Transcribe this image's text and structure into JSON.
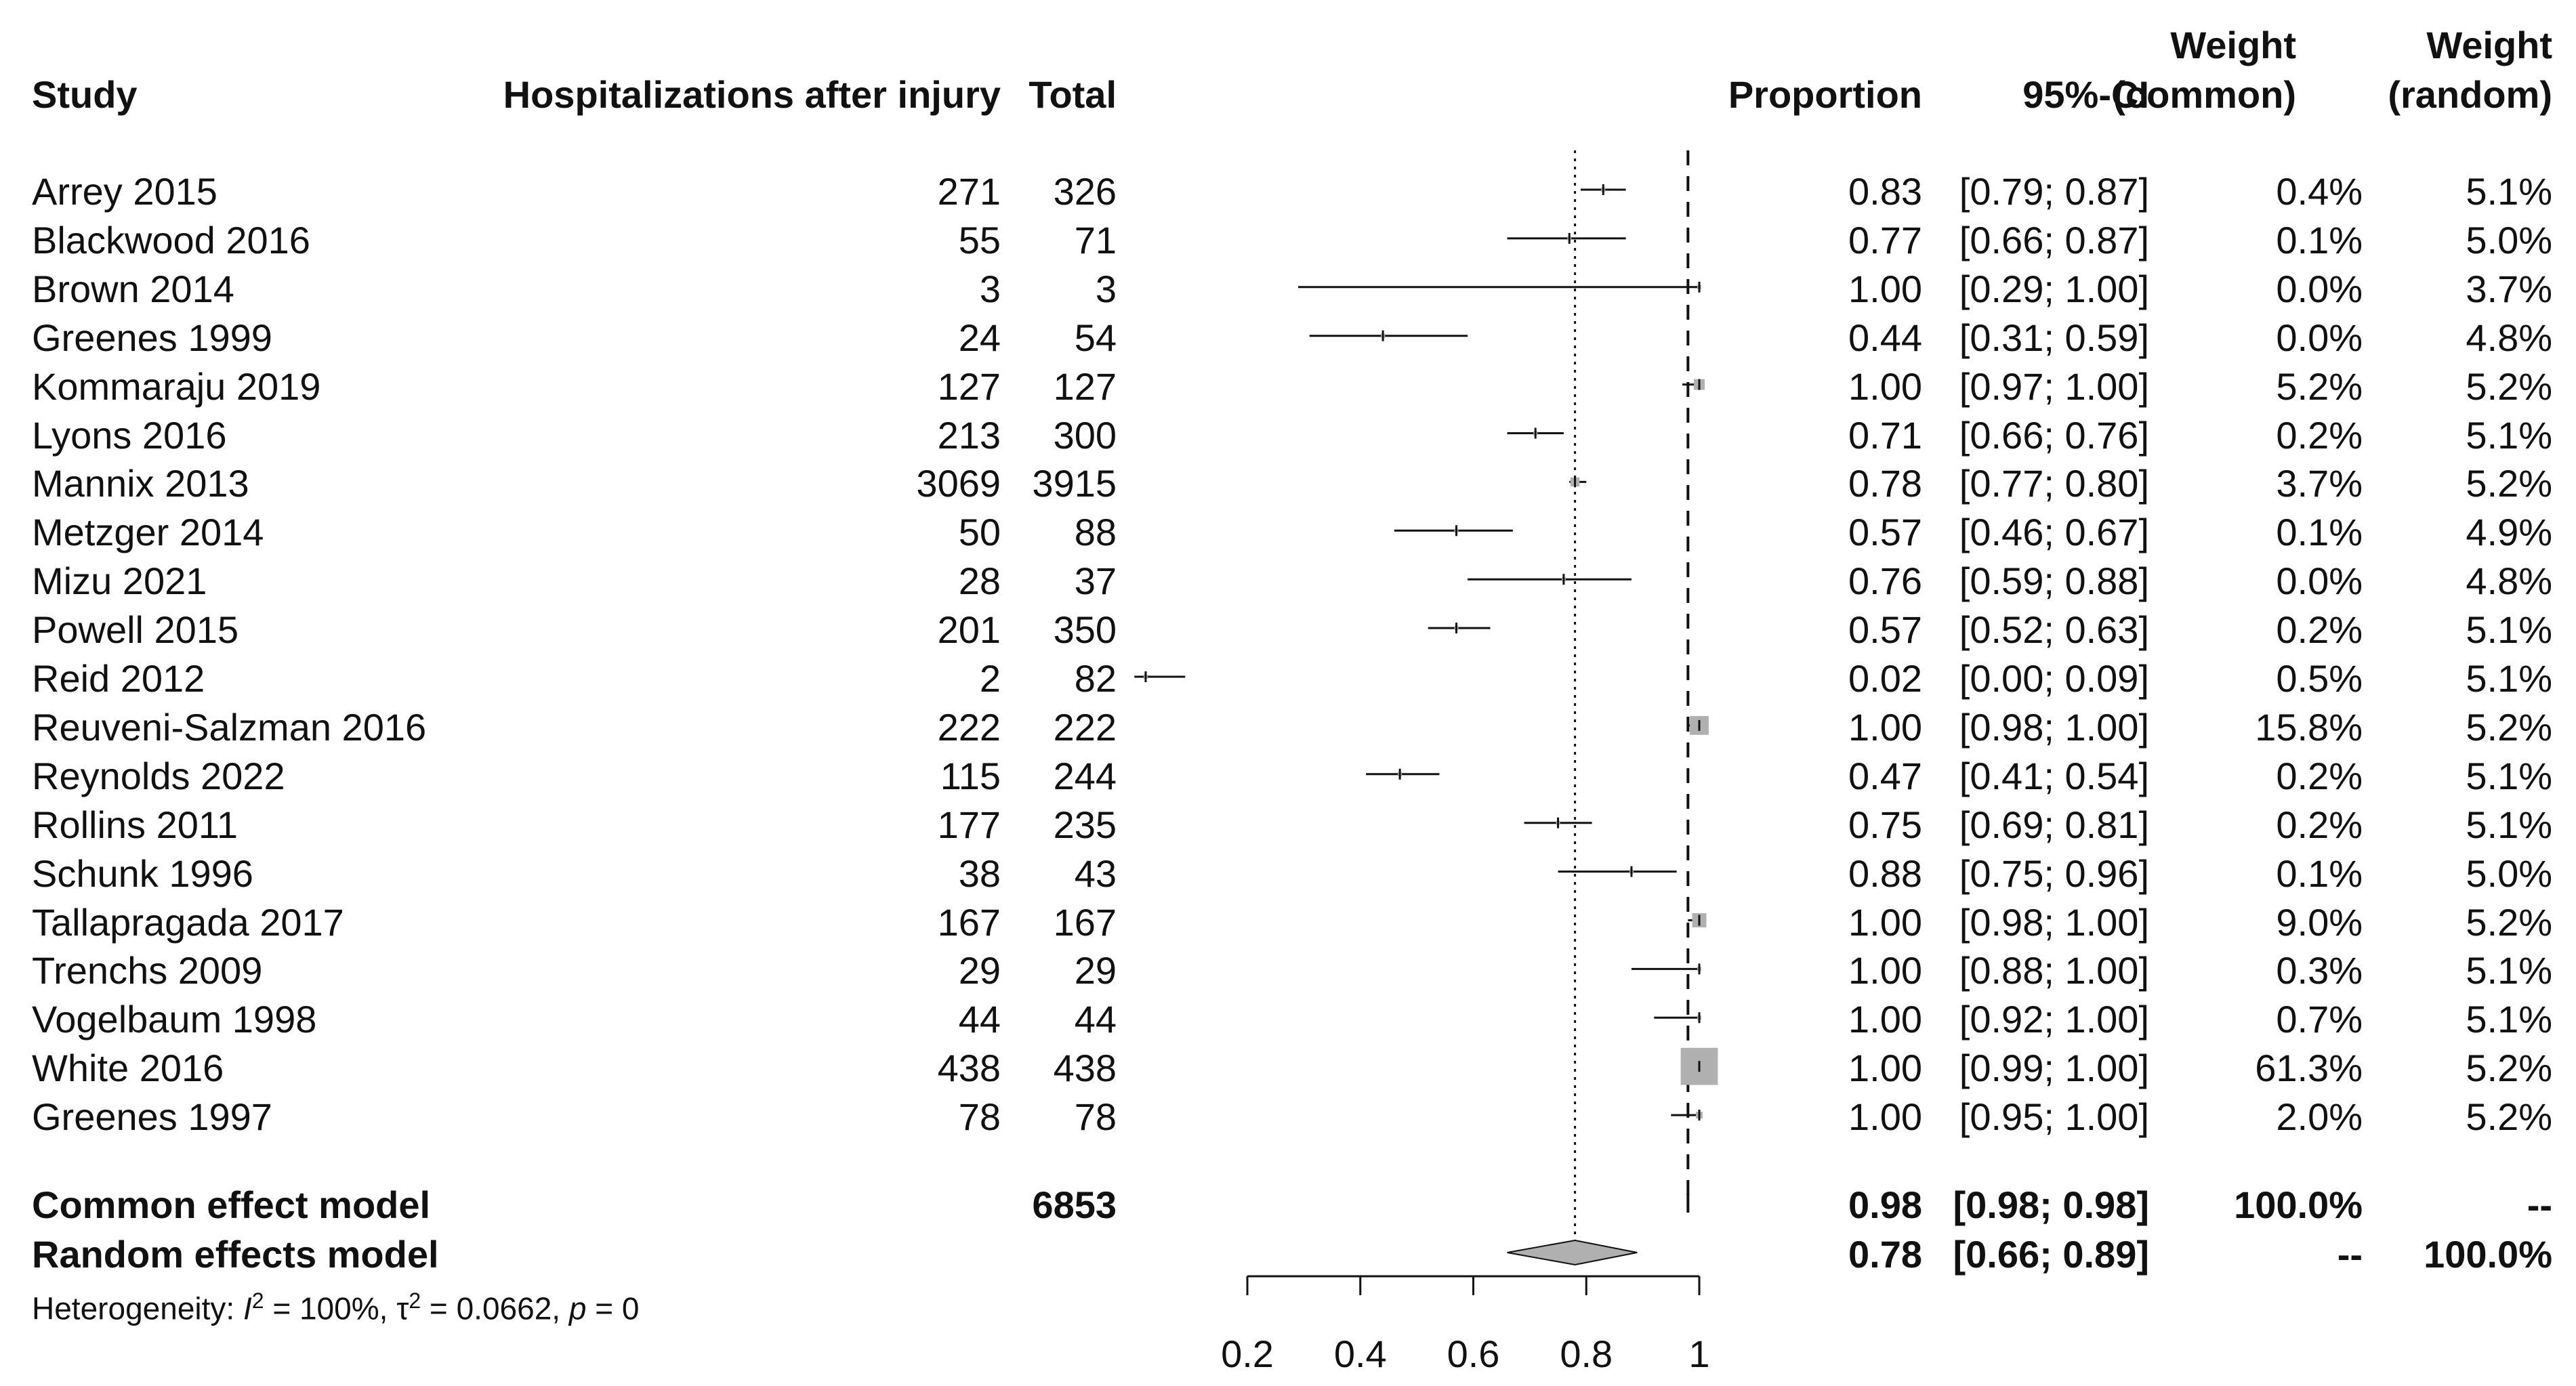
{
  "chart_data": {
    "type": "forest",
    "title": "",
    "xlabel": "",
    "xlim": [
      0.2,
      1.0
    ],
    "ticks": [
      "0.2",
      "0.4",
      "0.6",
      "0.8",
      "1"
    ],
    "tick_values": [
      0.2,
      0.4,
      0.6,
      0.8,
      1.0
    ],
    "reference_lines": {
      "common": 0.98,
      "random": 0.78
    },
    "headers": {
      "study": "Study",
      "events": "Hospitalizations after injury",
      "total": "Total",
      "proportion": "Proportion",
      "ci": "95%-CI",
      "weight_common_1": "Weight",
      "weight_common_2": "(common)",
      "weight_random_1": "Weight",
      "weight_random_2": "(random)"
    },
    "studies": [
      {
        "study": "Arrey 2015",
        "events": "271",
        "total": "326",
        "prop": 0.83,
        "lo": 0.79,
        "hi": 0.87,
        "prop_s": "0.83",
        "ci_s": "[0.79; 0.87]",
        "wc_s": "0.4%",
        "wr_s": "5.1%",
        "wc": 0.4
      },
      {
        "study": "Blackwood 2016",
        "events": "55",
        "total": "71",
        "prop": 0.77,
        "lo": 0.66,
        "hi": 0.87,
        "prop_s": "0.77",
        "ci_s": "[0.66; 0.87]",
        "wc_s": "0.1%",
        "wr_s": "5.0%",
        "wc": 0.1
      },
      {
        "study": "Brown 2014",
        "events": "3",
        "total": "3",
        "prop": 1.0,
        "lo": 0.29,
        "hi": 1.0,
        "prop_s": "1.00",
        "ci_s": "[0.29; 1.00]",
        "wc_s": "0.0%",
        "wr_s": "3.7%",
        "wc": 0.0
      },
      {
        "study": "Greenes 1999",
        "events": "24",
        "total": "54",
        "prop": 0.44,
        "lo": 0.31,
        "hi": 0.59,
        "prop_s": "0.44",
        "ci_s": "[0.31; 0.59]",
        "wc_s": "0.0%",
        "wr_s": "4.8%",
        "wc": 0.0
      },
      {
        "study": "Kommaraju 2019",
        "events": "127",
        "total": "127",
        "prop": 1.0,
        "lo": 0.97,
        "hi": 1.0,
        "prop_s": "1.00",
        "ci_s": "[0.97; 1.00]",
        "wc_s": "5.2%",
        "wr_s": "5.2%",
        "wc": 5.2
      },
      {
        "study": "Lyons 2016",
        "events": "213",
        "total": "300",
        "prop": 0.71,
        "lo": 0.66,
        "hi": 0.76,
        "prop_s": "0.71",
        "ci_s": "[0.66; 0.76]",
        "wc_s": "0.2%",
        "wr_s": "5.1%",
        "wc": 0.2
      },
      {
        "study": "Mannix 2013",
        "events": "3069",
        "total": "3915",
        "prop": 0.78,
        "lo": 0.77,
        "hi": 0.8,
        "prop_s": "0.78",
        "ci_s": "[0.77; 0.80]",
        "wc_s": "3.7%",
        "wr_s": "5.2%",
        "wc": 3.7
      },
      {
        "study": "Metzger 2014",
        "events": "50",
        "total": "88",
        "prop": 0.57,
        "lo": 0.46,
        "hi": 0.67,
        "prop_s": "0.57",
        "ci_s": "[0.46; 0.67]",
        "wc_s": "0.1%",
        "wr_s": "4.9%",
        "wc": 0.1
      },
      {
        "study": "Mizu 2021",
        "events": "28",
        "total": "37",
        "prop": 0.76,
        "lo": 0.59,
        "hi": 0.88,
        "prop_s": "0.76",
        "ci_s": "[0.59; 0.88]",
        "wc_s": "0.0%",
        "wr_s": "4.8%",
        "wc": 0.0
      },
      {
        "study": "Powell 2015",
        "events": "201",
        "total": "350",
        "prop": 0.57,
        "lo": 0.52,
        "hi": 0.63,
        "prop_s": "0.57",
        "ci_s": "[0.52; 0.63]",
        "wc_s": "0.2%",
        "wr_s": "5.1%",
        "wc": 0.2
      },
      {
        "study": "Reid 2012",
        "events": "2",
        "total": "82",
        "prop": 0.02,
        "lo": 0.0,
        "hi": 0.09,
        "prop_s": "0.02",
        "ci_s": "[0.00; 0.09]",
        "wc_s": "0.5%",
        "wr_s": "5.1%",
        "wc": 0.5
      },
      {
        "study": "Reuveni-Salzman 2016",
        "events": "222",
        "total": "222",
        "prop": 1.0,
        "lo": 0.98,
        "hi": 1.0,
        "prop_s": "1.00",
        "ci_s": "[0.98; 1.00]",
        "wc_s": "15.8%",
        "wr_s": "5.2%",
        "wc": 15.8
      },
      {
        "study": "Reynolds 2022",
        "events": "115",
        "total": "244",
        "prop": 0.47,
        "lo": 0.41,
        "hi": 0.54,
        "prop_s": "0.47",
        "ci_s": "[0.41; 0.54]",
        "wc_s": "0.2%",
        "wr_s": "5.1%",
        "wc": 0.2
      },
      {
        "study": "Rollins 2011",
        "events": "177",
        "total": "235",
        "prop": 0.75,
        "lo": 0.69,
        "hi": 0.81,
        "prop_s": "0.75",
        "ci_s": "[0.69; 0.81]",
        "wc_s": "0.2%",
        "wr_s": "5.1%",
        "wc": 0.2
      },
      {
        "study": "Schunk 1996",
        "events": "38",
        "total": "43",
        "prop": 0.88,
        "lo": 0.75,
        "hi": 0.96,
        "prop_s": "0.88",
        "ci_s": "[0.75; 0.96]",
        "wc_s": "0.1%",
        "wr_s": "5.0%",
        "wc": 0.1
      },
      {
        "study": "Tallapragada 2017",
        "events": "167",
        "total": "167",
        "prop": 1.0,
        "lo": 0.98,
        "hi": 1.0,
        "prop_s": "1.00",
        "ci_s": "[0.98; 1.00]",
        "wc_s": "9.0%",
        "wr_s": "5.2%",
        "wc": 9.0
      },
      {
        "study": "Trenchs 2009",
        "events": "29",
        "total": "29",
        "prop": 1.0,
        "lo": 0.88,
        "hi": 1.0,
        "prop_s": "1.00",
        "ci_s": "[0.88; 1.00]",
        "wc_s": "0.3%",
        "wr_s": "5.1%",
        "wc": 0.3
      },
      {
        "study": "Vogelbaum 1998",
        "events": "44",
        "total": "44",
        "prop": 1.0,
        "lo": 0.92,
        "hi": 1.0,
        "prop_s": "1.00",
        "ci_s": "[0.92; 1.00]",
        "wc_s": "0.7%",
        "wr_s": "5.1%",
        "wc": 0.7
      },
      {
        "study": "White 2016",
        "events": "438",
        "total": "438",
        "prop": 1.0,
        "lo": 0.99,
        "hi": 1.0,
        "prop_s": "1.00",
        "ci_s": "[0.99; 1.00]",
        "wc_s": "61.3%",
        "wr_s": "5.2%",
        "wc": 61.3
      },
      {
        "study": "Greenes 1997",
        "events": "78",
        "total": "78",
        "prop": 1.0,
        "lo": 0.95,
        "hi": 1.0,
        "prop_s": "1.00",
        "ci_s": "[0.95; 1.00]",
        "wc_s": "2.0%",
        "wr_s": "5.2%",
        "wc": 2.0
      }
    ],
    "common": {
      "label": "Common effect model",
      "total": "6853",
      "prop": 0.98,
      "lo": 0.98,
      "hi": 0.98,
      "prop_s": "0.98",
      "ci_s": "[0.98; 0.98]",
      "wc_s": "100.0%",
      "wr_s": "--"
    },
    "random": {
      "label": "Random effects model",
      "prop": 0.78,
      "lo": 0.66,
      "hi": 0.89,
      "prop_s": "0.78",
      "ci_s": "[0.66; 0.89]",
      "wc_s": "--",
      "wr_s": "100.0%"
    },
    "heterogeneity": {
      "prefix": "Heterogeneity: ",
      "i2_sym": "I",
      "i2_sup": "2",
      "i2_val": " = 100%, ",
      "tau_sym": "τ",
      "tau_sup": "2",
      "tau_val": " = 0.0662, ",
      "p_sym": "p",
      "p_val": " = 0"
    },
    "colors": {
      "line": "#111111",
      "box": "#b0b0b0",
      "diamond": "#b0b0b0"
    }
  }
}
